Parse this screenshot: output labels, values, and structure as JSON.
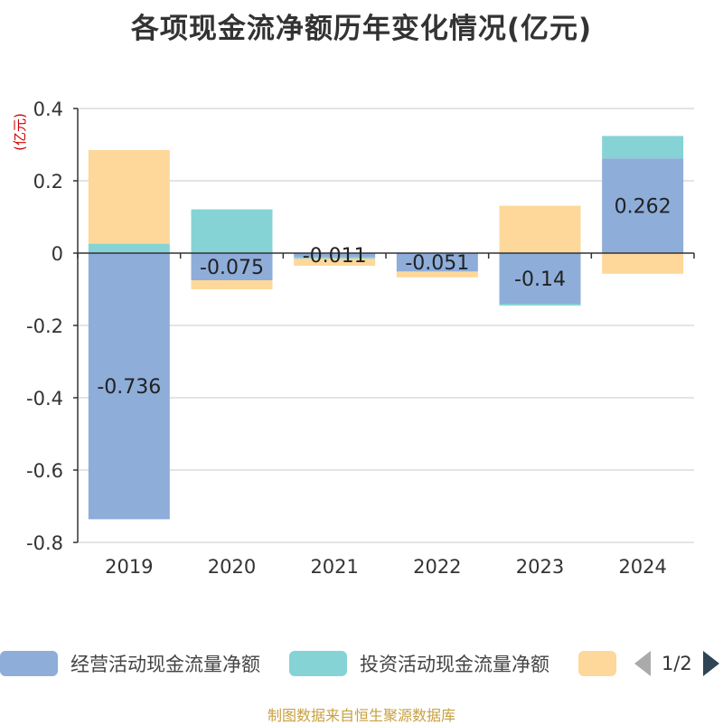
{
  "title": "各项现金流净额历年变化情况(亿元)",
  "y_unit": "(亿元)",
  "legend": {
    "items": [
      {
        "label": "经营活动现金流量净额",
        "color": "#8eadd9"
      },
      {
        "label": "投资活动现金流量净额",
        "color": "#86d3d5"
      },
      {
        "label": "",
        "color": "#fdd89a"
      }
    ],
    "page": "1/2"
  },
  "source": "制图数据来自恒生聚源数据库",
  "chart_data": {
    "type": "bar",
    "stacked": true,
    "categories": [
      "2019",
      "2020",
      "2021",
      "2022",
      "2023",
      "2024"
    ],
    "series": [
      {
        "name": "经营活动现金流量净额",
        "color": "#8eadd9",
        "values": [
          -0.736,
          -0.075,
          -0.011,
          -0.051,
          -0.14,
          0.262
        ]
      },
      {
        "name": "投资活动现金流量净额",
        "color": "#86d3d5",
        "values": [
          0.026,
          0.121,
          -0.004,
          0.0,
          -0.005,
          0.062
        ]
      },
      {
        "color": "#fdd89a",
        "values": [
          0.259,
          -0.025,
          -0.02,
          -0.016,
          0.131,
          -0.057
        ]
      }
    ],
    "data_labels": [
      "-0.736",
      "-0.075",
      "-0.011",
      "-0.051",
      "-0.14",
      "0.262"
    ],
    "yticks": [
      "0.4",
      "0.2",
      "0",
      "-0.2",
      "-0.4",
      "-0.6",
      "-0.8"
    ],
    "ylim": [
      -0.8,
      0.4
    ],
    "grid": true
  }
}
